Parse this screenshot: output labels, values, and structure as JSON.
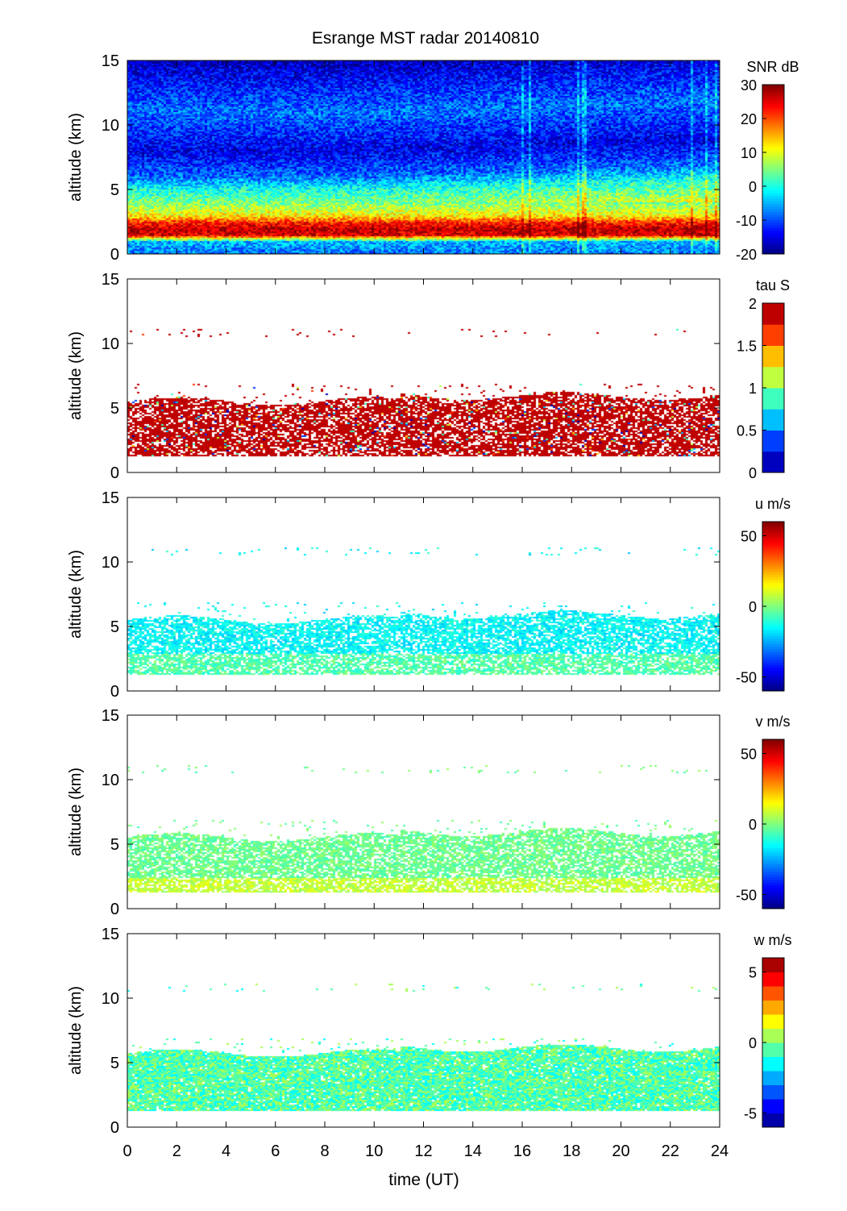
{
  "chart_data": {
    "type": "heatmap",
    "title": "Esrange MST radar 20140810",
    "xlabel": "time (UT)",
    "xlim": [
      0,
      24
    ],
    "xticks": [
      0,
      2,
      4,
      6,
      8,
      10,
      12,
      14,
      16,
      18,
      20,
      22,
      24
    ],
    "panels": [
      {
        "name": "snr",
        "ylabel": "altitude (km)",
        "ylim": [
          0,
          15
        ],
        "yticks": [
          0,
          5,
          10,
          15
        ],
        "colorbar_label": "SNR dB",
        "clim": [
          -20,
          30
        ],
        "cticks": [
          -20,
          -10,
          0,
          10,
          20,
          30
        ],
        "ctick_labels": [
          "-20",
          "-10",
          "0",
          "10",
          "20",
          "30"
        ],
        "levels": 0,
        "profile": {
          "altitude_km": [
            0,
            1,
            1.5,
            2,
            2.5,
            3,
            4,
            5,
            6,
            8,
            11,
            15
          ],
          "value": [
            -8,
            -5,
            25,
            27,
            22,
            12,
            5,
            0,
            -8,
            -15,
            -8,
            -17
          ]
        }
      },
      {
        "name": "tau",
        "ylabel": "altitude (km)",
        "ylim": [
          0,
          15
        ],
        "yticks": [
          0,
          5,
          10,
          15
        ],
        "colorbar_label": "tau S",
        "clim": [
          0,
          2
        ],
        "cticks": [
          0,
          0.5,
          1,
          1.5,
          2
        ],
        "ctick_labels": [
          "0",
          "0.5",
          "1",
          "1.5",
          "2"
        ],
        "levels": 8,
        "data_range_km": [
          1.3,
          5.6
        ],
        "typical_value": 2
      },
      {
        "name": "u",
        "ylabel": "altitude (km)",
        "ylim": [
          0,
          15
        ],
        "yticks": [
          0,
          5,
          10,
          15
        ],
        "colorbar_label": "u m/s",
        "clim": [
          -60,
          60
        ],
        "cticks": [
          -50,
          0,
          50
        ],
        "ctick_labels": [
          "-50",
          "0",
          "50"
        ],
        "levels": 0,
        "data_range_km": [
          1.3,
          5.6
        ],
        "typical_value": -15
      },
      {
        "name": "v",
        "ylabel": "altitude (km)",
        "ylim": [
          0,
          15
        ],
        "yticks": [
          0,
          5,
          10,
          15
        ],
        "colorbar_label": "v m/s",
        "clim": [
          -60,
          60
        ],
        "cticks": [
          -50,
          0,
          50
        ],
        "ctick_labels": [
          "-50",
          "0",
          "50"
        ],
        "levels": 0,
        "data_range_km": [
          1.3,
          5.6
        ],
        "typical_value": -2
      },
      {
        "name": "w",
        "ylabel": "altitude (km)",
        "ylim": [
          0,
          15
        ],
        "yticks": [
          0,
          5,
          10,
          15
        ],
        "colorbar_label": "w m/s",
        "clim": [
          -6,
          6
        ],
        "cticks": [
          -5,
          0,
          5
        ],
        "ctick_labels": [
          "-5",
          "0",
          "5"
        ],
        "levels": 12,
        "data_range_km": [
          1.3,
          5.8
        ],
        "typical_value": -0.5
      }
    ]
  }
}
